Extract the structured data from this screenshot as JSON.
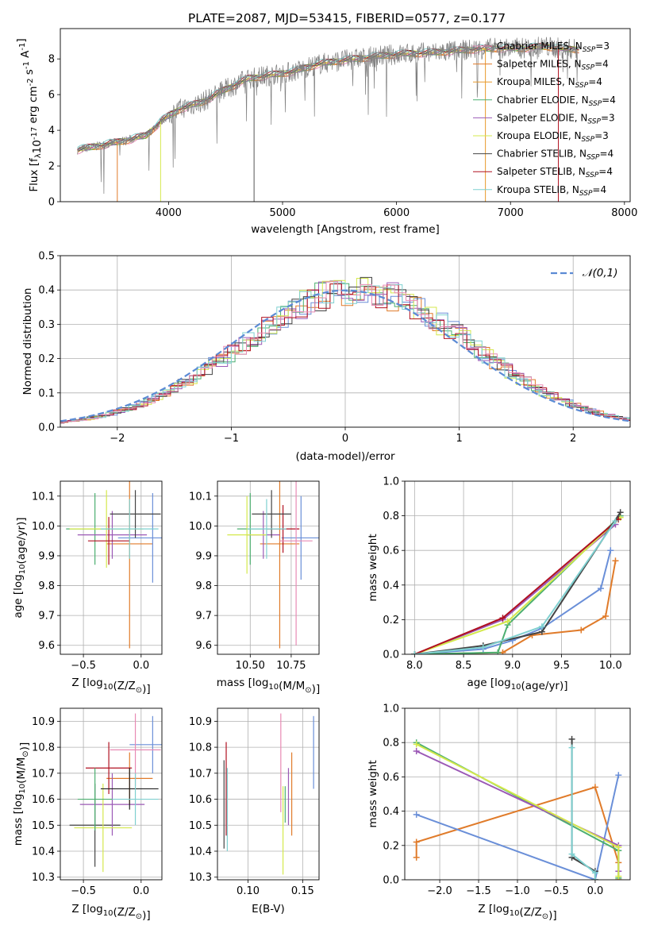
{
  "title": "PLATE=2087, MJD=53415, FIBERID=0577, z=0.177",
  "colors": [
    "#e07b2a",
    "#6a8fd8",
    "#4caf70",
    "#9b59b6",
    "#a3c4e8",
    "#d4e84c",
    "#555555",
    "#b01020",
    "#7fd0d0",
    "#e88ab4",
    "#222222"
  ],
  "chart_data": [
    {
      "id": "spectrum",
      "type": "line",
      "xlabel": "wavelength [Angstrom, rest frame]",
      "ylabel": "Flux [f$_\\lambda$10$^{-17}$ erg cm$^{-2}$ s$^{-1}$ A$^{-1}$]",
      "xlim": [
        3050,
        8050
      ],
      "ylim": [
        0,
        9.7
      ],
      "xticks": [
        4000,
        5000,
        6000,
        7000,
        8000
      ],
      "yticks": [
        0,
        2,
        4,
        6,
        8
      ],
      "legend_position": "upper-right",
      "series": [
        {
          "name": "Chabrier MILES, N$_{SSP}$=3",
          "color": "#e88ab4"
        },
        {
          "name": "Salpeter MILES, N$_{SSP}$=4",
          "color": "#e07b2a"
        },
        {
          "name": "Kroupa MILES, N$_{SSP}$=4",
          "color": "#e89a2a"
        },
        {
          "name": "Chabrier ELODIE, N$_{SSP}$=4",
          "color": "#4caf70"
        },
        {
          "name": "Salpeter ELODIE, N$_{SSP}$=3",
          "color": "#9b59b6"
        },
        {
          "name": "Kroupa ELODIE, N$_{SSP}$=3",
          "color": "#d4e84c"
        },
        {
          "name": "Chabrier STELIB, N$_{SSP}$=4",
          "color": "#444444"
        },
        {
          "name": "Salpeter STELIB, N$_{SSP}$=4",
          "color": "#b01020"
        },
        {
          "name": "Kroupa STELIB, N$_{SSP}$=4",
          "color": "#7fd0d0"
        }
      ],
      "data_x": [
        3200,
        3400,
        3600,
        3800,
        3950,
        4100,
        4300,
        4500,
        4700,
        4900,
        5100,
        5300,
        5500,
        5700,
        5900,
        6100,
        6300,
        6500,
        6700,
        6900,
        7100,
        7300,
        7500
      ],
      "data_y": [
        2.9,
        3.15,
        3.4,
        3.7,
        4.6,
        5.2,
        5.6,
        6.3,
        6.9,
        7.1,
        7.3,
        7.7,
        7.9,
        8.05,
        8.2,
        8.3,
        8.35,
        8.45,
        8.55,
        8.6,
        8.6,
        8.7,
        8.55
      ]
    },
    {
      "id": "residuals",
      "type": "histogram",
      "xlabel": "(data-model)/error",
      "ylabel": "Normed distribution",
      "xlim": [
        -2.5,
        2.5
      ],
      "ylim": [
        0,
        0.5
      ],
      "xticks": [
        -2,
        -1,
        0,
        1,
        2
      ],
      "yticks": [
        0.0,
        0.1,
        0.2,
        0.3,
        0.4,
        0.5
      ],
      "grid": true,
      "legend": "$\\mathcal{N}(0,1)$",
      "legend_position": "upper-right",
      "gaussian_color": "#5b8ad4"
    },
    {
      "id": "age_vs_z",
      "type": "errorbar",
      "xlabel": "Z [log$_{10}$(Z/Z$_\\odot$)]",
      "ylabel": "age  [log$_{10}$(age/yr)]",
      "xlim": [
        -0.7,
        0.18
      ],
      "ylim": [
        9.57,
        10.15
      ],
      "xticks": [
        -0.5,
        0.0
      ],
      "yticks": [
        9.6,
        9.7,
        9.8,
        9.9,
        10.0,
        10.1
      ],
      "grid": true,
      "points": [
        {
          "x": -0.4,
          "y": 9.99,
          "xerr": 0.25,
          "yerr": 0.12,
          "color": "#4caf70"
        },
        {
          "x": -0.1,
          "y": 9.94,
          "xerr": 0.2,
          "yerr": 0.35,
          "color": "#e07b2a"
        },
        {
          "x": 0.1,
          "y": 9.96,
          "xerr": 0.3,
          "yerr": 0.15,
          "color": "#6a8fd8"
        },
        {
          "x": -0.25,
          "y": 9.97,
          "xerr": 0.3,
          "yerr": 0.08,
          "color": "#9b59b6"
        },
        {
          "x": -0.3,
          "y": 9.99,
          "xerr": 0.32,
          "yerr": 0.13,
          "color": "#d4e84c"
        },
        {
          "x": -0.28,
          "y": 9.95,
          "xerr": 0.18,
          "yerr": 0.08,
          "color": "#b01020"
        },
        {
          "x": -0.05,
          "y": 10.04,
          "xerr": 0.22,
          "yerr": 0.08,
          "color": "#444444"
        },
        {
          "x": -0.1,
          "y": 9.99,
          "xerr": 0.25,
          "yerr": 0.1,
          "color": "#7fd0d0"
        }
      ]
    },
    {
      "id": "age_vs_mass",
      "type": "errorbar",
      "xlabel": "mass [log$_{10}$(M/M$_\\odot$)]",
      "ylabel": "",
      "xlim": [
        10.3,
        10.92
      ],
      "ylim": [
        9.57,
        10.15
      ],
      "xticks": [
        10.5,
        10.75
      ],
      "yticks": [
        9.6,
        9.7,
        9.8,
        9.9,
        10.0,
        10.1
      ],
      "grid": true,
      "points": [
        {
          "x": 10.5,
          "y": 9.99,
          "xerr": 0.08,
          "yerr": 0.12,
          "color": "#4caf70"
        },
        {
          "x": 10.68,
          "y": 9.94,
          "xerr": 0.12,
          "yerr": 0.35,
          "color": "#e07b2a"
        },
        {
          "x": 10.81,
          "y": 9.96,
          "xerr": 0.12,
          "yerr": 0.14,
          "color": "#6a8fd8"
        },
        {
          "x": 10.58,
          "y": 9.97,
          "xerr": 0.1,
          "yerr": 0.08,
          "color": "#9b59b6"
        },
        {
          "x": 10.48,
          "y": 9.97,
          "xerr": 0.12,
          "yerr": 0.13,
          "color": "#d4e84c"
        },
        {
          "x": 10.7,
          "y": 9.99,
          "xerr": 0.1,
          "yerr": 0.08,
          "color": "#b01020"
        },
        {
          "x": 10.63,
          "y": 10.04,
          "xerr": 0.12,
          "yerr": 0.08,
          "color": "#444444"
        },
        {
          "x": 10.78,
          "y": 9.95,
          "xerr": 0.1,
          "yerr": 0.35,
          "color": "#e88ab4"
        },
        {
          "x": 10.6,
          "y": 9.99,
          "xerr": 0.12,
          "yerr": 0.1,
          "color": "#7fd0d0"
        }
      ]
    },
    {
      "id": "massweight_vs_age",
      "type": "line",
      "xlabel": "age  [log$_{10}$(age/yr)]",
      "ylabel": "mass weight",
      "xlim": [
        7.9,
        10.2
      ],
      "ylim": [
        0.0,
        1.0
      ],
      "xticks": [
        8.0,
        8.5,
        9.0,
        9.5,
        10.0
      ],
      "yticks": [
        0.0,
        0.2,
        0.4,
        0.6,
        0.8,
        1.0
      ],
      "grid": true,
      "series": [
        {
          "color": "#e07b2a",
          "x": [
            8.0,
            8.9,
            9.2,
            9.7,
            9.95,
            10.05
          ],
          "y": [
            0.0,
            0.01,
            0.11,
            0.14,
            0.22,
            0.54
          ]
        },
        {
          "color": "#6a8fd8",
          "x": [
            8.0,
            8.7,
            9.0,
            9.3,
            9.9,
            10.0
          ],
          "y": [
            0.0,
            0.03,
            0.08,
            0.15,
            0.38,
            0.6
          ]
        },
        {
          "color": "#4caf70",
          "x": [
            8.0,
            8.85,
            8.95,
            10.1
          ],
          "y": [
            0.0,
            0.01,
            0.17,
            0.8
          ]
        },
        {
          "color": "#9b59b6",
          "x": [
            8.0,
            8.9,
            10.05
          ],
          "y": [
            0.0,
            0.2,
            0.75
          ]
        },
        {
          "color": "#d4e84c",
          "x": [
            8.0,
            8.95,
            10.1
          ],
          "y": [
            0.0,
            0.19,
            0.79
          ]
        },
        {
          "color": "#b01020",
          "x": [
            8.0,
            8.9,
            10.08
          ],
          "y": [
            0.0,
            0.21,
            0.78
          ]
        },
        {
          "color": "#444444",
          "x": [
            8.0,
            8.7,
            9.3,
            10.1
          ],
          "y": [
            0.0,
            0.05,
            0.13,
            0.82
          ]
        },
        {
          "color": "#7fd0d0",
          "x": [
            8.0,
            8.7,
            9.3,
            10.05
          ],
          "y": [
            0.0,
            0.04,
            0.16,
            0.77
          ]
        }
      ]
    },
    {
      "id": "mass_vs_z",
      "type": "errorbar",
      "xlabel": "Z [log$_{10}$(Z/Z$_\\odot$)]",
      "ylabel": "mass [log$_{10}$(M/M$_\\odot$)]",
      "xlim": [
        -0.7,
        0.18
      ],
      "ylim": [
        10.29,
        10.95
      ],
      "xticks": [
        -0.5,
        0.0
      ],
      "yticks": [
        10.3,
        10.4,
        10.5,
        10.6,
        10.7,
        10.8,
        10.9
      ],
      "grid": true,
      "points": [
        {
          "x": -0.4,
          "y": 10.5,
          "xerr": 0.22,
          "yerr": 0.16,
          "color": "#444444"
        },
        {
          "x": -0.1,
          "y": 10.68,
          "xerr": 0.2,
          "yerr": 0.1,
          "color": "#e07b2a"
        },
        {
          "x": 0.1,
          "y": 10.81,
          "xerr": 0.2,
          "yerr": 0.11,
          "color": "#6a8fd8"
        },
        {
          "x": -0.25,
          "y": 10.58,
          "xerr": 0.28,
          "yerr": 0.12,
          "color": "#9b59b6"
        },
        {
          "x": -0.33,
          "y": 10.49,
          "xerr": 0.25,
          "yerr": 0.17,
          "color": "#d4e84c"
        },
        {
          "x": -0.28,
          "y": 10.72,
          "xerr": 0.2,
          "yerr": 0.1,
          "color": "#b01020"
        },
        {
          "x": -0.1,
          "y": 10.64,
          "xerr": 0.25,
          "yerr": 0.08,
          "color": "#222222"
        },
        {
          "x": -0.05,
          "y": 10.79,
          "xerr": 0.22,
          "yerr": 0.14,
          "color": "#e88ab4"
        },
        {
          "x": -0.4,
          "y": 10.6,
          "xerr": 0.15,
          "yerr": 0.12,
          "color": "#4caf70"
        },
        {
          "x": -0.05,
          "y": 10.6,
          "xerr": 0.2,
          "yerr": 0.1,
          "color": "#7fd0d0"
        }
      ]
    },
    {
      "id": "mass_vs_ebv",
      "type": "errorbar",
      "xlabel": "E(B-V)",
      "ylabel": "",
      "xlim": [
        0.072,
        0.165
      ],
      "ylim": [
        10.29,
        10.95
      ],
      "xticks": [
        0.1,
        0.15
      ],
      "yticks": [
        10.3,
        10.4,
        10.5,
        10.6,
        10.7,
        10.8,
        10.9
      ],
      "grid": true,
      "points": [
        {
          "x": 0.078,
          "y": 10.58,
          "yerr": 0.17,
          "color": "#444444"
        },
        {
          "x": 0.08,
          "y": 10.64,
          "yerr": 0.18,
          "color": "#b01020"
        },
        {
          "x": 0.081,
          "y": 10.56,
          "yerr": 0.16,
          "color": "#7fd0d0"
        },
        {
          "x": 0.13,
          "y": 10.74,
          "yerr": 0.19,
          "color": "#e88ab4"
        },
        {
          "x": 0.132,
          "y": 10.48,
          "yerr": 0.17,
          "color": "#d4e84c"
        },
        {
          "x": 0.134,
          "y": 10.58,
          "yerr": 0.07,
          "color": "#4caf70"
        },
        {
          "x": 0.137,
          "y": 10.61,
          "yerr": 0.11,
          "color": "#9b59b6"
        },
        {
          "x": 0.14,
          "y": 10.62,
          "yerr": 0.16,
          "color": "#e07b2a"
        },
        {
          "x": 0.16,
          "y": 10.78,
          "yerr": 0.14,
          "color": "#6a8fd8"
        }
      ]
    },
    {
      "id": "massweight_vs_z",
      "type": "line",
      "xlabel": "Z [log$_{10}$(Z/Z$_\\odot$)]",
      "ylabel": "mass weight",
      "xlim": [
        -2.45,
        0.45
      ],
      "ylim": [
        0.0,
        1.0
      ],
      "xticks": [
        -2.0,
        -1.5,
        -1.0,
        -0.5,
        0.0
      ],
      "yticks": [
        0.0,
        0.2,
        0.4,
        0.6,
        0.8,
        1.0
      ],
      "grid": true,
      "series": [
        {
          "color": "#e07b2a",
          "x": [
            -2.3,
            -2.3,
            0.0,
            0.3,
            0.3
          ],
          "y": [
            0.13,
            0.22,
            0.54,
            0.1,
            0.0
          ]
        },
        {
          "color": "#6a8fd8",
          "x": [
            -2.3,
            0.0,
            0.3
          ],
          "y": [
            0.38,
            0.0,
            0.61
          ]
        },
        {
          "color": "#4caf70",
          "x": [
            -2.3,
            0.3,
            0.3
          ],
          "y": [
            0.8,
            0.17,
            0.01
          ]
        },
        {
          "color": "#9b59b6",
          "x": [
            -2.3,
            0.3,
            0.3
          ],
          "y": [
            0.75,
            0.2,
            0.05
          ]
        },
        {
          "color": "#d4e84c",
          "x": [
            -2.3,
            0.3,
            0.3
          ],
          "y": [
            0.79,
            0.19,
            0.02
          ]
        },
        {
          "color": "#444444",
          "x": [
            -0.3,
            -0.3,
            0.0,
            0.0
          ],
          "y": [
            0.82,
            0.13,
            0.05,
            0.0
          ]
        },
        {
          "color": "#7fd0d0",
          "x": [
            -0.3,
            -0.3,
            0.0,
            0.0
          ],
          "y": [
            0.77,
            0.15,
            0.04,
            0.0
          ]
        }
      ]
    }
  ]
}
